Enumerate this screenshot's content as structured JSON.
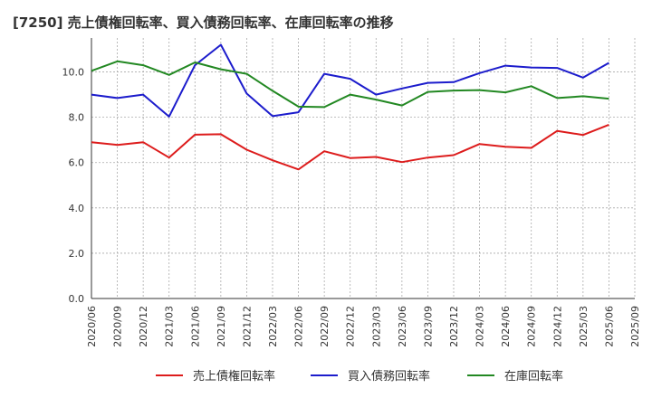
{
  "chart_data": {
    "type": "line",
    "title": "[7250]  売上債権回転率、買入債務回転率、在庫回転率の推移",
    "xlabel": "",
    "ylabel": "",
    "ylim": [
      0,
      11.5
    ],
    "yticks": [
      "0.0",
      "2.0",
      "4.0",
      "6.0",
      "8.0",
      "10.0"
    ],
    "ytick_values": [
      0,
      2,
      4,
      6,
      8,
      10
    ],
    "categories": [
      "2020/06",
      "2020/09",
      "2020/12",
      "2021/03",
      "2021/06",
      "2021/09",
      "2021/12",
      "2022/03",
      "2022/06",
      "2022/09",
      "2022/12",
      "2023/03",
      "2023/06",
      "2023/09",
      "2023/12",
      "2024/03",
      "2024/06",
      "2024/09",
      "2024/12",
      "2025/03",
      "2025/06",
      "2025/09"
    ],
    "grid": true,
    "legend_position": "bottom",
    "series": [
      {
        "name": "売上債権回転率",
        "color": "#dd1c1c",
        "values": [
          6.9,
          6.78,
          6.9,
          6.22,
          7.23,
          7.25,
          6.57,
          6.1,
          5.7,
          6.5,
          6.2,
          6.25,
          6.02,
          6.22,
          6.33,
          6.82,
          6.7,
          6.65,
          7.4,
          7.22,
          7.67,
          null
        ]
      },
      {
        "name": "買入債務回転率",
        "color": "#1c1ccc",
        "values": [
          9.0,
          8.85,
          9.0,
          8.03,
          10.3,
          11.2,
          9.05,
          8.05,
          8.22,
          9.92,
          9.7,
          9.0,
          9.27,
          9.52,
          9.55,
          9.95,
          10.28,
          10.2,
          10.18,
          9.75,
          10.4,
          null
        ]
      },
      {
        "name": "在庫回転率",
        "color": "#228822",
        "values": [
          10.05,
          10.47,
          10.3,
          9.87,
          10.42,
          10.12,
          9.92,
          9.17,
          8.47,
          8.45,
          9.0,
          8.78,
          8.52,
          9.12,
          9.18,
          9.2,
          9.1,
          9.37,
          8.85,
          8.93,
          8.82,
          null
        ]
      }
    ]
  }
}
